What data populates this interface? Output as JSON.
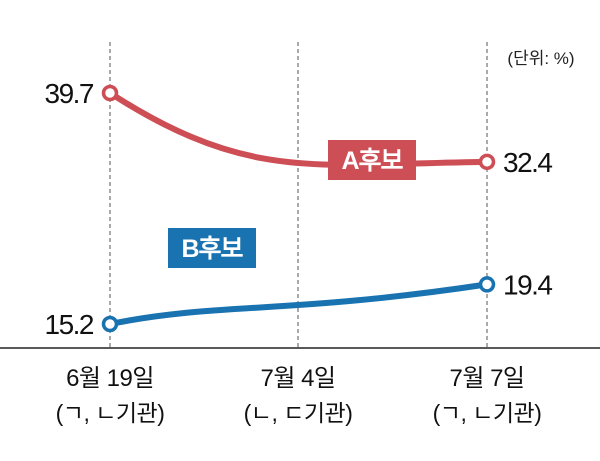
{
  "chart_data": {
    "type": "line",
    "unit_note": "(단위: %)",
    "x": [
      {
        "date": "6월 19일",
        "note": "(ㄱ, ㄴ기관)"
      },
      {
        "date": "7월 4일",
        "note": "(ㄴ, ㄷ기관)"
      },
      {
        "date": "7월 7일",
        "note": "(ㄱ, ㄴ기관)"
      }
    ],
    "series": [
      {
        "name": "A후보",
        "color": "#cd4e55",
        "points": [
          {
            "x_index": 0,
            "value": 39.7,
            "label": "39.7"
          },
          {
            "x_index": 2,
            "value": 32.4,
            "label": "32.4"
          }
        ]
      },
      {
        "name": "B후보",
        "color": "#1a73b1",
        "points": [
          {
            "x_index": 0,
            "value": 15.2,
            "label": "15.2"
          },
          {
            "x_index": 2,
            "value": 19.4,
            "label": "19.4"
          }
        ]
      }
    ],
    "xlabel": "",
    "ylabel": "",
    "grid": "vertical dashed",
    "legend": "inline labels"
  }
}
